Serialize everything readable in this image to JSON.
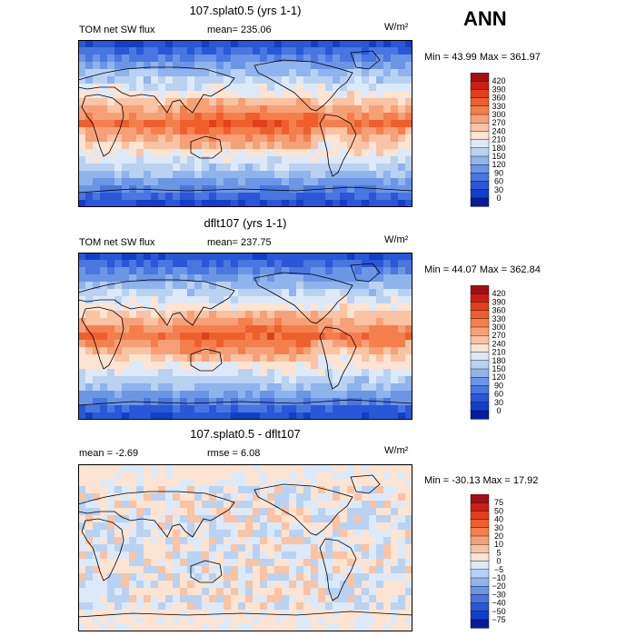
{
  "season": "ANN",
  "panels": [
    {
      "title": "107.splat0.5 (yrs 1-1)",
      "left_label": "TOM net SW flux",
      "mid_label": "mean= 235.06",
      "units": "W/m²",
      "stats": "Min =  43.99 Max = 361.97",
      "kind": "abs",
      "colorbar": {
        "levels": [
          "420",
          "390",
          "360",
          "330",
          "300",
          "270",
          "240",
          "210",
          "180",
          "150",
          "120",
          "90",
          "60",
          "30",
          "0"
        ],
        "colors": [
          "#a10f14",
          "#c91f16",
          "#e2401d",
          "#ef5f2e",
          "#f47f4d",
          "#f6a077",
          "#f9c3a4",
          "#fde3d2",
          "#dce9f8",
          "#b9d2f2",
          "#8fb3ec",
          "#6c95e6",
          "#4a76e0",
          "#2a56d8",
          "#133ec8",
          "#061c9a"
        ]
      }
    },
    {
      "title": "dflt107 (yrs 1-1)",
      "left_label": "TOM net SW flux",
      "mid_label": "mean= 237.75",
      "units": "W/m²",
      "stats": "Min =  44.07 Max = 362.84",
      "kind": "abs",
      "colorbar": {
        "levels": [
          "420",
          "390",
          "360",
          "330",
          "300",
          "270",
          "240",
          "210",
          "180",
          "150",
          "120",
          "90",
          "60",
          "30",
          "0"
        ],
        "colors": [
          "#a10f14",
          "#c91f16",
          "#e2401d",
          "#ef5f2e",
          "#f47f4d",
          "#f6a077",
          "#f9c3a4",
          "#fde3d2",
          "#dce9f8",
          "#b9d2f2",
          "#8fb3ec",
          "#6c95e6",
          "#4a76e0",
          "#2a56d8",
          "#133ec8",
          "#061c9a"
        ]
      }
    },
    {
      "title": "107.splat0.5 - dflt107",
      "left_label": "mean =   -2.69",
      "mid_label": "rmse =   6.08",
      "units": "W/m²",
      "stats": "Min = -30.13 Max =   17.92",
      "kind": "diff",
      "colorbar": {
        "levels": [
          "75",
          "50",
          "40",
          "30",
          "20",
          "10",
          "5",
          "0",
          "−5",
          "−10",
          "−20",
          "−30",
          "−40",
          "−50",
          "−75"
        ],
        "colors": [
          "#a10f14",
          "#c91f16",
          "#e2401d",
          "#ef5f2e",
          "#f47f4d",
          "#f6a077",
          "#f9c3a4",
          "#fde3d2",
          "#dce9f8",
          "#b9d2f2",
          "#8fb3ec",
          "#6c95e6",
          "#4a76e0",
          "#2a56d8",
          "#133ec8",
          "#061c9a"
        ]
      }
    }
  ]
}
